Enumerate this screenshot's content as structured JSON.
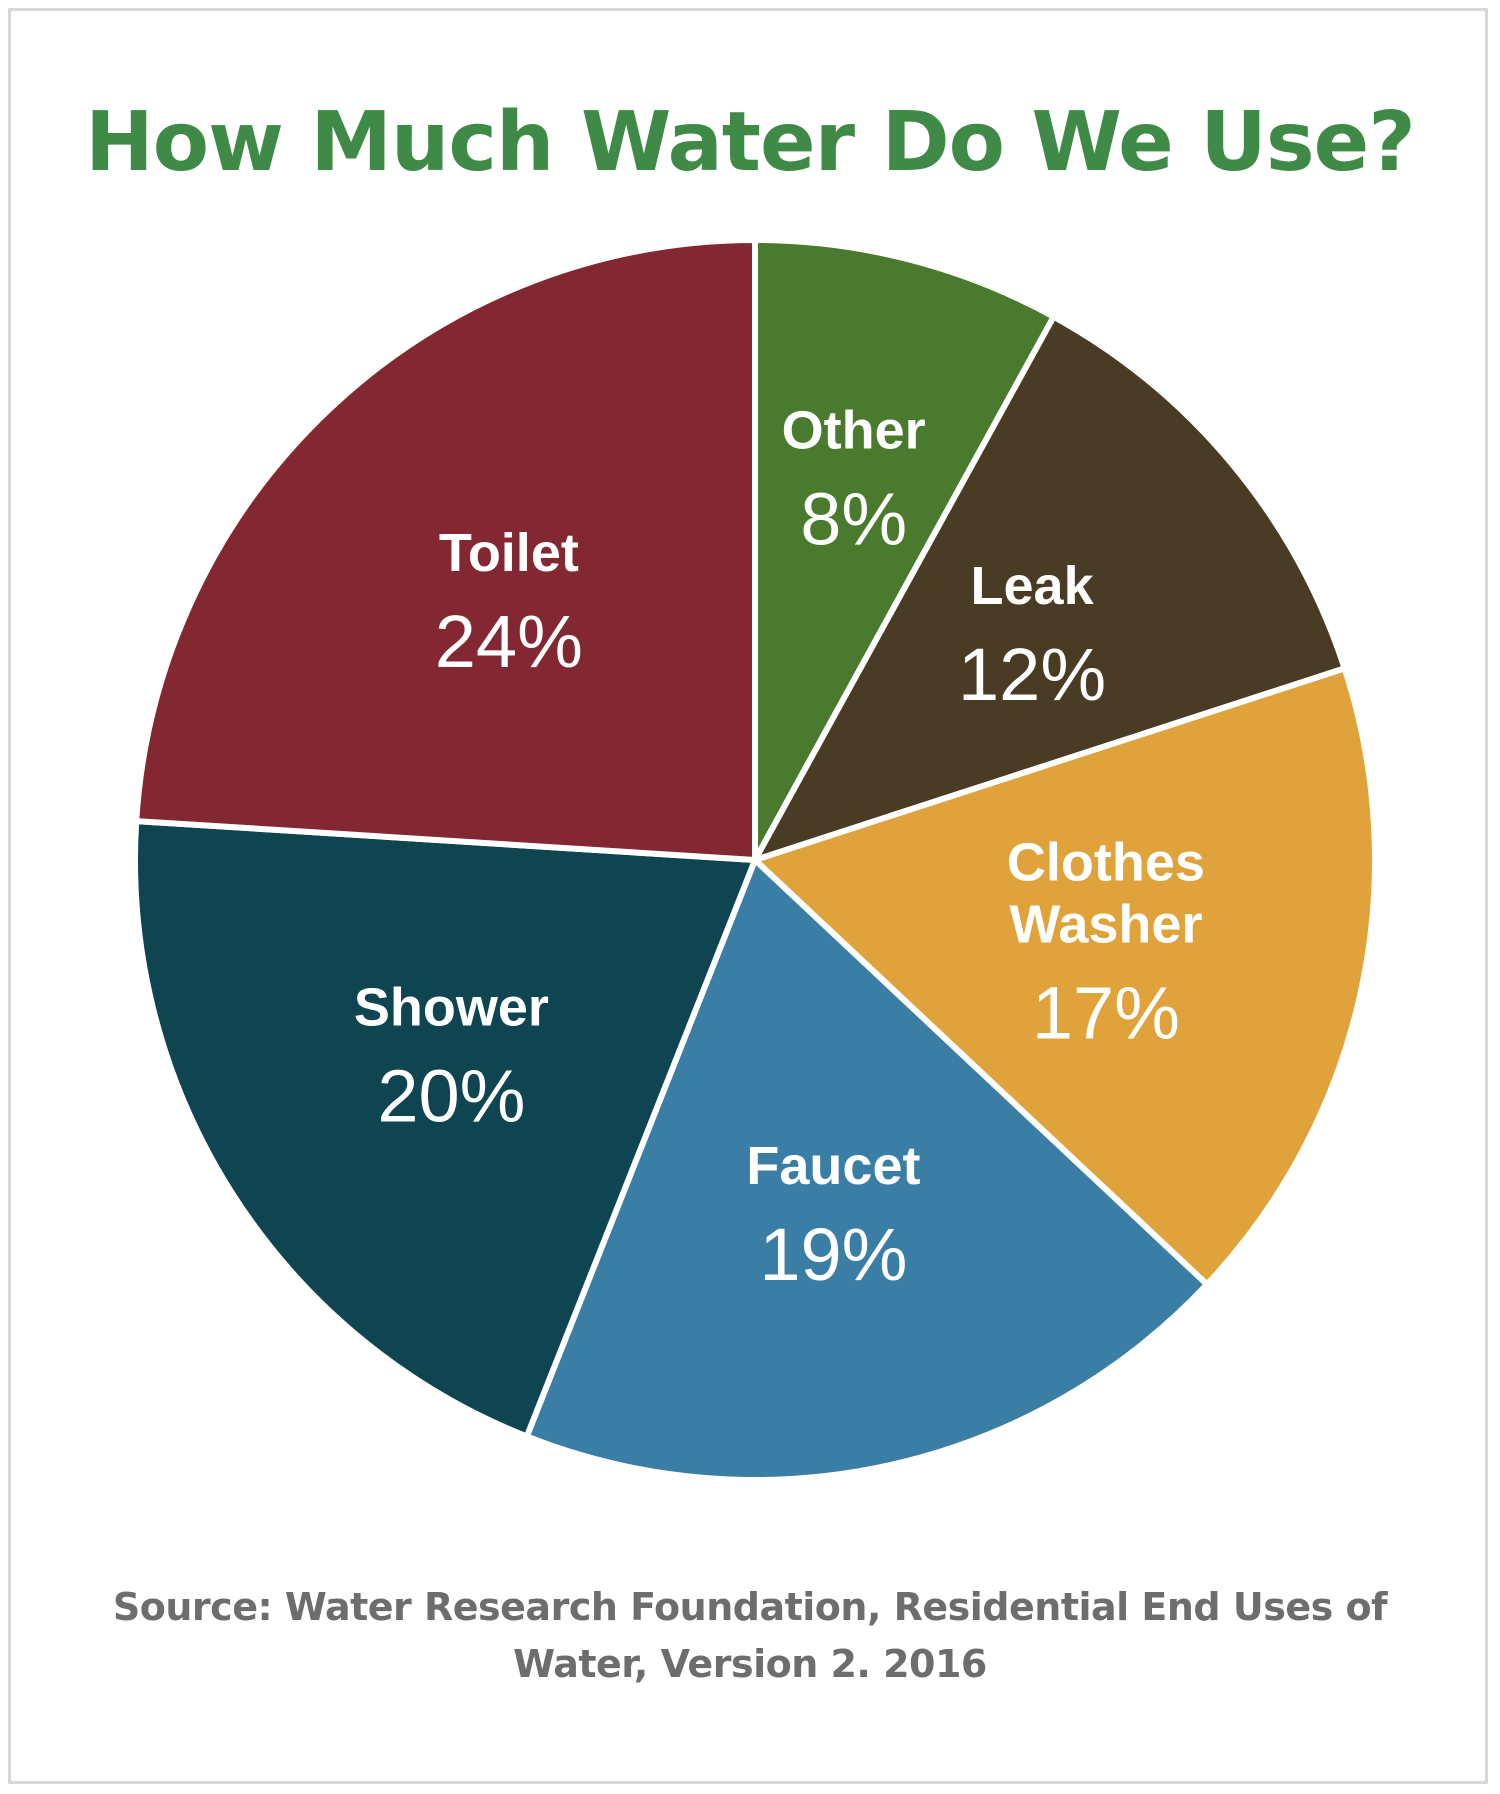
{
  "title": "How Much Water Do We Use?",
  "source": {
    "line1": "Source: Water Research Foundation, Residential End  Uses of",
    "line2": "Water, Version 2. 2016"
  },
  "chart_data": {
    "type": "pie",
    "title": "How Much Water Do We Use?",
    "unit": "%",
    "slices": [
      {
        "label": [
          "Other"
        ],
        "value": 8,
        "value_label": "8%",
        "color": "#4a7a2e"
      },
      {
        "label": [
          "Leak"
        ],
        "value": 12,
        "value_label": "12%",
        "color": "#4a3b24"
      },
      {
        "label": [
          "Clothes",
          "Washer"
        ],
        "value": 17,
        "value_label": "17%",
        "color": "#e0a23a"
      },
      {
        "label": [
          "Faucet"
        ],
        "value": 19,
        "value_label": "19%",
        "color": "#3b7ea5"
      },
      {
        "label": [
          "Shower"
        ],
        "value": 20,
        "value_label": "20%",
        "color": "#0f4451"
      },
      {
        "label": [
          "Toilet"
        ],
        "value": 24,
        "value_label": "24%",
        "color": "#832833"
      }
    ],
    "start_angle_deg": 0,
    "direction": "clockwise",
    "legend": "none (labels inside slices)"
  }
}
